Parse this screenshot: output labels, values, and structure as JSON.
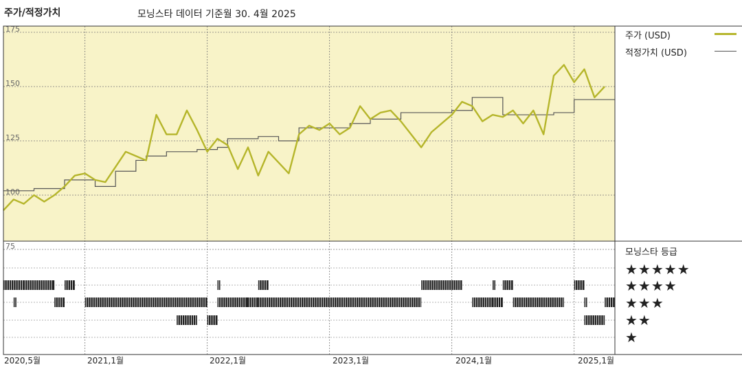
{
  "header": {
    "title": "주가/적정가치",
    "subtitle": "모닝스타 데이터 기준월 30. 4월 2025"
  },
  "legend": {
    "price_label": "주가 (USD)",
    "fair_label": "적정가치 (USD)",
    "rating_title": "모닝스타 등급"
  },
  "rating_rows": [
    "★★★★★",
    "★★★★",
    "★★★",
    "★★",
    "★"
  ],
  "colors": {
    "price": "#b5b52a",
    "fair": "#555555",
    "panel_bg": "#f8f3c8",
    "bars": "#222222"
  },
  "chart_data": {
    "type": "line",
    "title": "주가/적정가치",
    "subtitle": "모닝스타 데이터 기준월 30. 4월 2025",
    "y_ticks": [
      175,
      150,
      125,
      100,
      75
    ],
    "ylim": [
      75,
      175
    ],
    "xlim": [
      "2020-05",
      "2025-05"
    ],
    "x_tick_labels": [
      "2020,5월",
      "2021,1월",
      "2022,1월",
      "2023,1월",
      "2024,1월",
      "2025,1월"
    ],
    "grid": true,
    "legend_position": "right",
    "series": [
      {
        "name": "주가 (USD)",
        "points": [
          [
            "2020-05",
            93
          ],
          [
            "2020-06",
            98
          ],
          [
            "2020-07",
            96
          ],
          [
            "2020-08",
            100
          ],
          [
            "2020-09",
            97
          ],
          [
            "2020-10",
            100
          ],
          [
            "2020-11",
            104
          ],
          [
            "2020-12",
            109
          ],
          [
            "2021-01",
            110
          ],
          [
            "2021-02",
            107
          ],
          [
            "2021-03",
            106
          ],
          [
            "2021-04",
            113
          ],
          [
            "2021-05",
            120
          ],
          [
            "2021-06",
            118
          ],
          [
            "2021-07",
            116
          ],
          [
            "2021-08",
            137
          ],
          [
            "2021-09",
            128
          ],
          [
            "2021-10",
            128
          ],
          [
            "2021-11",
            139
          ],
          [
            "2021-12",
            130
          ],
          [
            "2022-01",
            120
          ],
          [
            "2022-02",
            126
          ],
          [
            "2022-03",
            123
          ],
          [
            "2022-04",
            112
          ],
          [
            "2022-05",
            122
          ],
          [
            "2022-06",
            109
          ],
          [
            "2022-07",
            120
          ],
          [
            "2022-08",
            115
          ],
          [
            "2022-09",
            110
          ],
          [
            "2022-10",
            128
          ],
          [
            "2022-11",
            132
          ],
          [
            "2022-12",
            130
          ],
          [
            "2023-01",
            133
          ],
          [
            "2023-02",
            128
          ],
          [
            "2023-03",
            131
          ],
          [
            "2023-04",
            141
          ],
          [
            "2023-05",
            135
          ],
          [
            "2023-06",
            138
          ],
          [
            "2023-07",
            139
          ],
          [
            "2023-08",
            134
          ],
          [
            "2023-09",
            128
          ],
          [
            "2023-10",
            122
          ],
          [
            "2023-11",
            129
          ],
          [
            "2023-12",
            133
          ],
          [
            "2024-01",
            137
          ],
          [
            "2024-02",
            143
          ],
          [
            "2024-03",
            141
          ],
          [
            "2024-04",
            134
          ],
          [
            "2024-05",
            137
          ],
          [
            "2024-06",
            136
          ],
          [
            "2024-07",
            139
          ],
          [
            "2024-08",
            133
          ],
          [
            "2024-09",
            139
          ],
          [
            "2024-10",
            128
          ],
          [
            "2024-11",
            155
          ],
          [
            "2024-12",
            160
          ],
          [
            "2025-01",
            152
          ],
          [
            "2025-02",
            158
          ],
          [
            "2025-03",
            145
          ],
          [
            "2025-04",
            150
          ]
        ]
      },
      {
        "name": "적정가치 (USD)",
        "type": "step",
        "points": [
          [
            "2020-05",
            102
          ],
          [
            "2020-08",
            103
          ],
          [
            "2020-11",
            107
          ],
          [
            "2021-02",
            104
          ],
          [
            "2021-04",
            111
          ],
          [
            "2021-06",
            116
          ],
          [
            "2021-07",
            118
          ],
          [
            "2021-09",
            120
          ],
          [
            "2021-12",
            121
          ],
          [
            "2022-02",
            122
          ],
          [
            "2022-03",
            126
          ],
          [
            "2022-06",
            127
          ],
          [
            "2022-08",
            125
          ],
          [
            "2022-10",
            131
          ],
          [
            "2023-03",
            133
          ],
          [
            "2023-05",
            135
          ],
          [
            "2023-08",
            138
          ],
          [
            "2024-01",
            139
          ],
          [
            "2024-03",
            145
          ],
          [
            "2024-06",
            137
          ],
          [
            "2024-11",
            138
          ],
          [
            "2025-01",
            144
          ]
        ]
      }
    ],
    "ratings": [
      {
        "stars": 4,
        "ranges": [
          [
            "2020-05",
            "2020-07"
          ],
          [
            "2020-07",
            "2020-10"
          ],
          [
            "2020-11",
            "2020-12"
          ],
          [
            "2022-02",
            "2022-02"
          ],
          [
            "2022-06",
            "2022-07"
          ],
          [
            "2023-10",
            "2024-02"
          ],
          [
            "2024-05",
            "2024-05"
          ],
          [
            "2024-06",
            "2024-07"
          ],
          [
            "2025-01",
            "2025-02"
          ]
        ]
      },
      {
        "stars": 3,
        "ranges": [
          [
            "2020-06",
            "2020-06"
          ],
          [
            "2020-10",
            "2020-11"
          ],
          [
            "2021-01",
            "2022-01"
          ],
          [
            "2022-02",
            "2022-05"
          ],
          [
            "2022-05",
            "2022-06"
          ],
          [
            "2022-06",
            "2023-10"
          ],
          [
            "2024-03",
            "2024-05"
          ],
          [
            "2024-05",
            "2024-06"
          ],
          [
            "2024-07",
            "2024-12"
          ],
          [
            "2025-02",
            "2025-02"
          ],
          [
            "2025-04",
            "2025-05"
          ]
        ]
      },
      {
        "stars": 2,
        "ranges": [
          [
            "2021-10",
            "2021-12"
          ],
          [
            "2022-01",
            "2022-02"
          ],
          [
            "2025-02",
            "2025-04"
          ]
        ]
      }
    ]
  }
}
